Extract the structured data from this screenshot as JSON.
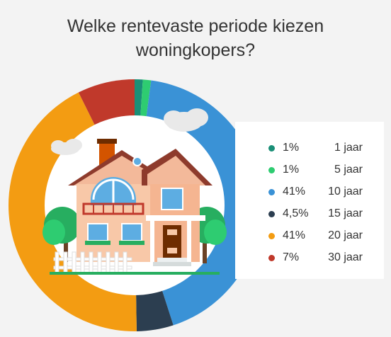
{
  "title_line1": "Welke rentevaste periode kiezen",
  "title_line2": "woningkopers?",
  "chart_data": {
    "type": "pie",
    "title": "Welke rentevaste periode kiezen woningkopers?",
    "slices": [
      {
        "label": "1 jaar",
        "value_text": "1%",
        "value": 1,
        "color": "#1a8f77"
      },
      {
        "label": "5 jaar",
        "value_text": "1%",
        "value": 1,
        "color": "#2ecc71"
      },
      {
        "label": "10 jaar",
        "value_text": "41%",
        "value": 41,
        "color": "#3a92d6"
      },
      {
        "label": "15 jaar",
        "value_text": "4,5%",
        "value": 4.5,
        "color": "#2c3e50"
      },
      {
        "label": "20 jaar",
        "value_text": "41%",
        "value": 41,
        "color": "#f39c12"
      },
      {
        "label": "30 jaar",
        "value_text": "7%",
        "value": 7,
        "color": "#c0392b"
      }
    ],
    "legend_position": "right"
  }
}
